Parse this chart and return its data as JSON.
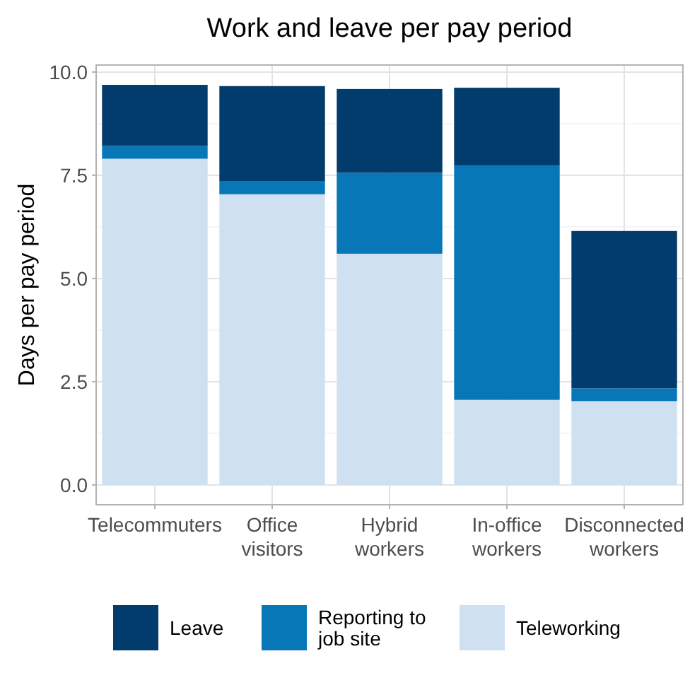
{
  "chart_data": {
    "type": "bar",
    "title": "Work and leave per pay period",
    "ylabel": "Days per pay period",
    "categories": [
      "Telecommuters",
      "Office\nvisitors",
      "Hybrid\nworkers",
      "In-office\nworkers",
      "Disconnected\nworkers"
    ],
    "stacked": true,
    "ylim": [
      -0.48,
      10.17
    ],
    "yticks": [
      {
        "value": 0,
        "label": "0.0"
      },
      {
        "value": 2.5,
        "label": "2.5"
      },
      {
        "value": 5,
        "label": "5.0"
      },
      {
        "value": 7.5,
        "label": "7.5"
      },
      {
        "value": 10,
        "label": "10.0"
      }
    ],
    "grid": true,
    "legend": "bottom",
    "series": [
      {
        "name": "Teleworking",
        "color": "#cfe1f0",
        "values": [
          7.9,
          7.04,
          5.6,
          2.06,
          2.03
        ]
      },
      {
        "name": "Reporting to\njob site",
        "color": "#0777b8",
        "values": [
          0.31,
          0.31,
          1.96,
          5.67,
          0.31
        ]
      },
      {
        "name": "Leave",
        "color": "#023c6c",
        "values": [
          1.48,
          2.31,
          2.03,
          1.89,
          3.81
        ]
      }
    ]
  }
}
